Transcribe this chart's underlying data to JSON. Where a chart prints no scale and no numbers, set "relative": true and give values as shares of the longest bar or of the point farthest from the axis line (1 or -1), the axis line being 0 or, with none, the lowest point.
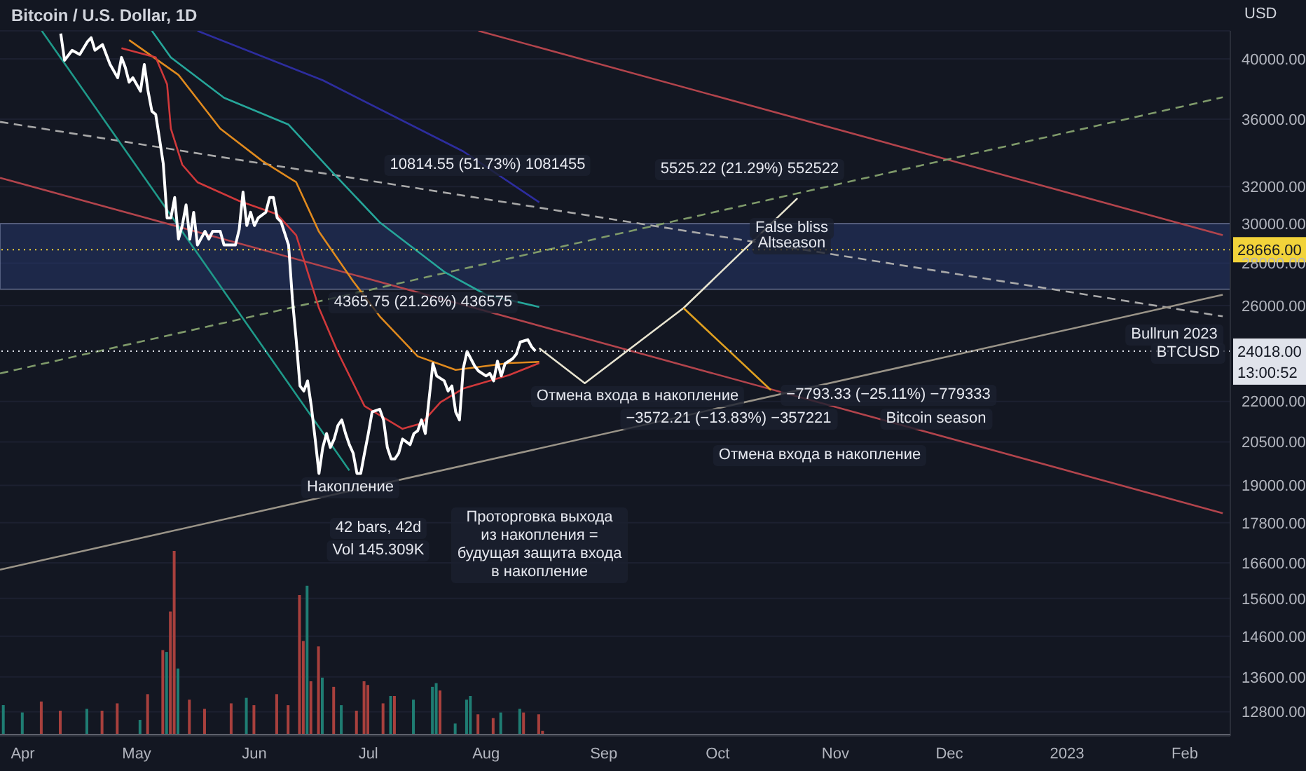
{
  "chart_data": [
    {
      "type": "line",
      "title": "Bitcoin / U.S. Dollar, 1D",
      "ylabel": "USD",
      "log": "y",
      "grid": "y",
      "xlim": [
        "2022-03-26",
        "2023-02-13"
      ],
      "xticks": [
        {
          "value": "2022-04-01",
          "label": "Apr"
        },
        {
          "value": "2022-05-01",
          "label": "May"
        },
        {
          "value": "2022-06-01",
          "label": "Jun"
        },
        {
          "value": "2022-07-01",
          "label": "Jul"
        },
        {
          "value": "2022-08-01",
          "label": "Aug"
        },
        {
          "value": "2022-09-01",
          "label": "Sep"
        },
        {
          "value": "2022-10-01",
          "label": "Oct"
        },
        {
          "value": "2022-11-01",
          "label": "Nov"
        },
        {
          "value": "2022-12-01",
          "label": "Dec"
        },
        {
          "value": "2023-01-01",
          "label": "2023"
        },
        {
          "value": "2023-02-01",
          "label": "Feb"
        }
      ],
      "ylim": [
        12270,
        42000
      ],
      "yticks": [
        {
          "value": 40000,
          "label": "40000.00"
        },
        {
          "value": 36000,
          "label": "36000.00"
        },
        {
          "value": 32000,
          "label": "32000.00"
        },
        {
          "value": 30000,
          "label": "30000.00"
        },
        {
          "value": 28000,
          "label": "28000.00"
        },
        {
          "value": 26000,
          "label": "26000.00"
        },
        {
          "value": 22000,
          "label": "22000.00"
        },
        {
          "value": 20500,
          "label": "20500.00"
        },
        {
          "value": 19000,
          "label": "19000.00"
        },
        {
          "value": 17800,
          "label": "17800.00"
        },
        {
          "value": 16600,
          "label": "16600.00"
        },
        {
          "value": 15600,
          "label": "15600.00"
        },
        {
          "value": 14600,
          "label": "14600.00"
        },
        {
          "value": 13600,
          "label": "13600.00"
        },
        {
          "value": 12800,
          "label": "12800.00"
        }
      ],
      "bands": [
        {
          "axis": "y",
          "from": 26750,
          "to": 30000,
          "color": "#2a3f7a"
        }
      ],
      "ref_lines": [
        {
          "axis": "y",
          "value": 28666,
          "label": "28666.00",
          "color": "#f2d33a",
          "line_style": "dotted"
        },
        {
          "axis": "y",
          "value": 24018,
          "label": "24018.00",
          "color": "#e0e3eb",
          "line_style": "dotted"
        }
      ],
      "series": [
        {
          "color": "#b2444c",
          "x": [
            "2022-07-30",
            "2023-02-11"
          ],
          "values": [
            42000,
            29400
          ]
        },
        {
          "color": "#b2444c",
          "x": [
            "2022-03-26",
            "2023-02-11"
          ],
          "values": [
            32500,
            18100
          ]
        },
        {
          "color": "#7f9a6a",
          "line_style": "dashed",
          "x": [
            "2022-03-26",
            "2023-02-11"
          ],
          "values": [
            23100,
            37400
          ]
        },
        {
          "color": "#a9a9a9",
          "line_style": "dashed",
          "x": [
            "2022-03-26",
            "2023-02-11"
          ],
          "values": [
            35830,
            25520
          ]
        },
        {
          "color": "#9a9488",
          "x": [
            "2022-03-26",
            "2023-02-11"
          ],
          "values": [
            16400,
            26500
          ]
        },
        {
          "color": "#1f9a8a",
          "x": [
            "2022-04-06",
            "2022-06-26"
          ],
          "values": [
            42000,
            19500
          ]
        },
        {
          "color": "#2d2d9e",
          "x": [
            "2022-05-17",
            "2022-06-19",
            "2022-07-26",
            "2022-08-15"
          ],
          "values": [
            42000,
            38530,
            34030,
            31140
          ]
        },
        {
          "color": "#26a69a",
          "x": [
            "2022-05-05",
            "2022-05-10",
            "2022-05-24",
            "2022-06-10",
            "2022-06-22",
            "2022-07-04",
            "2022-07-21",
            "2022-08-01",
            "2022-08-15"
          ],
          "values": [
            42000,
            40090,
            37370,
            35660,
            32710,
            30070,
            27580,
            26500,
            25940
          ]
        },
        {
          "color": "#e08a1e",
          "x": [
            "2022-04-29",
            "2022-05-12",
            "2022-05-23",
            "2022-06-03",
            "2022-06-12",
            "2022-06-18",
            "2022-06-27",
            "2022-07-04",
            "2022-07-14",
            "2022-07-24",
            "2022-08-07",
            "2022-08-15"
          ],
          "values": [
            41330,
            38890,
            35410,
            33480,
            32250,
            29580,
            27130,
            25520,
            23800,
            23240,
            23520,
            23570
          ]
        },
        {
          "color": "#d0393b",
          "x": [
            "2022-04-27",
            "2022-05-06",
            "2022-05-09",
            "2022-05-10",
            "2022-05-13",
            "2022-05-17",
            "2022-05-28",
            "2022-06-07",
            "2022-06-12",
            "2022-06-18",
            "2022-06-23",
            "2022-06-30",
            "2022-07-10",
            "2022-07-15",
            "2022-07-20",
            "2022-07-26",
            "2022-08-07",
            "2022-08-15"
          ],
          "values": [
            40750,
            40100,
            38260,
            35410,
            33250,
            32250,
            31210,
            30490,
            29400,
            25890,
            23960,
            21820,
            20970,
            21170,
            21970,
            22500,
            23030,
            23520
          ]
        },
        {
          "color": "#e8e4d0",
          "x": [
            "2022-08-15",
            "2022-08-27",
            "2022-09-22",
            "2022-10-22"
          ],
          "values": [
            24140,
            22710,
            25890,
            31360
          ]
        },
        {
          "color": "#e0a020",
          "x": [
            "2022-09-22",
            "2022-10-15"
          ],
          "values": [
            25890,
            22440
          ]
        },
        {
          "color": "#ffffff",
          "x": [
            "2022-04-11",
            "2022-04-12",
            "2022-04-14",
            "2022-04-16",
            "2022-04-18",
            "2022-04-19",
            "2022-04-20",
            "2022-04-22",
            "2022-04-24",
            "2022-04-26",
            "2022-04-27",
            "2022-04-28",
            "2022-04-29",
            "2022-04-30",
            "2022-05-02",
            "2022-05-03",
            "2022-05-04",
            "2022-05-05",
            "2022-05-06",
            "2022-05-07",
            "2022-05-08",
            "2022-05-09",
            "2022-05-10",
            "2022-05-11",
            "2022-05-12",
            "2022-05-13",
            "2022-05-14",
            "2022-05-15",
            "2022-05-16",
            "2022-05-17",
            "2022-05-19",
            "2022-05-20",
            "2022-05-21",
            "2022-05-23",
            "2022-05-24",
            "2022-05-27",
            "2022-05-28",
            "2022-05-29",
            "2022-05-30",
            "2022-05-31",
            "2022-06-01",
            "2022-06-02",
            "2022-06-04",
            "2022-06-05",
            "2022-06-06",
            "2022-06-07",
            "2022-06-08",
            "2022-06-10",
            "2022-06-11",
            "2022-06-12",
            "2022-06-13",
            "2022-06-14",
            "2022-06-15",
            "2022-06-16",
            "2022-06-17",
            "2022-06-18",
            "2022-06-19",
            "2022-06-20",
            "2022-06-21",
            "2022-06-22",
            "2022-06-23",
            "2022-06-24",
            "2022-06-25",
            "2022-06-26",
            "2022-06-27",
            "2022-06-28",
            "2022-06-29",
            "2022-06-30",
            "2022-07-01",
            "2022-07-02",
            "2022-07-04",
            "2022-07-05",
            "2022-07-06",
            "2022-07-07",
            "2022-07-08",
            "2022-07-09",
            "2022-07-10",
            "2022-07-12",
            "2022-07-13",
            "2022-07-14",
            "2022-07-15",
            "2022-07-16",
            "2022-07-17",
            "2022-07-18",
            "2022-07-19",
            "2022-07-21",
            "2022-07-22",
            "2022-07-23",
            "2022-07-24",
            "2022-07-25",
            "2022-07-26",
            "2022-07-27",
            "2022-07-29",
            "2022-07-30",
            "2022-08-01",
            "2022-08-02",
            "2022-08-03",
            "2022-08-04",
            "2022-08-05",
            "2022-08-06",
            "2022-08-08",
            "2022-08-09",
            "2022-08-10",
            "2022-08-12",
            "2022-08-13",
            "2022-08-14"
          ],
          "values": [
            41800,
            39900,
            40600,
            40300,
            41200,
            41500,
            40600,
            41000,
            39600,
            38700,
            40100,
            39400,
            38400,
            38700,
            37800,
            39600,
            37800,
            36500,
            36300,
            34800,
            33300,
            30300,
            30300,
            31400,
            29200,
            29900,
            31000,
            29200,
            30600,
            28900,
            29600,
            29200,
            29600,
            29600,
            28900,
            28900,
            29700,
            31700,
            29900,
            30600,
            29900,
            30300,
            30600,
            31400,
            31400,
            30300,
            30100,
            28900,
            26300,
            24500,
            22600,
            22400,
            22800,
            21800,
            20600,
            19400,
            20300,
            20800,
            20300,
            20600,
            21100,
            21300,
            20800,
            20400,
            20100,
            19400,
            19400,
            20100,
            20800,
            21600,
            21700,
            21300,
            20300,
            19900,
            19900,
            20100,
            20600,
            20400,
            20800,
            20900,
            21300,
            20800,
            22100,
            23500,
            23000,
            22800,
            22400,
            22600,
            21600,
            21300,
            23300,
            24000,
            23400,
            23200,
            23000,
            23100,
            22800,
            23600,
            23000,
            23500,
            23700,
            23900,
            24400,
            24500,
            24200,
            24018
          ]
        }
      ],
      "annotations": [
        "10814.55 (51.73%) 1081455",
        "4365.75 (21.26%) 436575",
        "5525.22 (21.29%) 552522",
        "False bliss",
        "Altseason",
        "Отмена входа в накопление",
        "−7793.33 (−25.11%) −779333",
        "−3572.21 (−13.83%) −357221",
        "Bitcoin season",
        "Отмена входа в накопление",
        "Bullrun 2023",
        "Накопление",
        "42 bars, 42d",
        "Vol 145.309K",
        "Проторговка выхода из накопления = будущая защита входа в накопление",
        "BTCUSD",
        "13:00:52"
      ]
    },
    {
      "type": "bar",
      "relative": true,
      "tick_labels": false,
      "xlim": [
        "2022-03-26",
        "2023-02-13"
      ],
      "x": [
        "2022-03-27",
        "2022-04-01",
        "2022-04-06",
        "2022-04-11",
        "2022-04-18",
        "2022-04-22",
        "2022-04-26",
        "2022-05-02",
        "2022-05-04",
        "2022-05-08",
        "2022-05-09",
        "2022-05-10",
        "2022-05-11",
        "2022-05-12",
        "2022-05-15",
        "2022-05-19",
        "2022-05-26",
        "2022-05-30",
        "2022-06-01",
        "2022-06-07",
        "2022-06-10",
        "2022-06-13",
        "2022-06-14",
        "2022-06-15",
        "2022-06-16",
        "2022-06-18",
        "2022-06-19",
        "2022-06-22",
        "2022-06-24",
        "2022-06-28",
        "2022-06-30",
        "2022-07-01",
        "2022-07-05",
        "2022-07-07",
        "2022-07-08",
        "2022-07-13",
        "2022-07-18",
        "2022-07-19",
        "2022-07-20",
        "2022-07-24",
        "2022-07-27",
        "2022-07-28",
        "2022-07-30",
        "2022-08-03",
        "2022-08-05",
        "2022-08-10",
        "2022-08-11",
        "2022-08-15",
        "2022-08-16"
      ],
      "values": [
        0.16,
        0.12,
        0.18,
        0.13,
        0.14,
        0.13,
        0.17,
        0.08,
        0.22,
        0.46,
        0.45,
        0.67,
        1,
        0.36,
        0.19,
        0.14,
        0.17,
        0.2,
        0.16,
        0.22,
        0.16,
        0.76,
        0.51,
        0.81,
        0.29,
        0.48,
        0.31,
        0.26,
        0.16,
        0.13,
        0.29,
        0.27,
        0.17,
        0.21,
        0.21,
        0.19,
        0.26,
        0.28,
        0.24,
        0.06,
        0.19,
        0.21,
        0.11,
        0.09,
        0.12,
        0.14,
        0.12,
        0.11,
        0.02
      ],
      "colors": [
        "#1f7d73",
        "#1f7d73",
        "#a8403d",
        "#a8403d",
        "#1f7d73",
        "#a8403d",
        "#a8403d",
        "#1f7d73",
        "#a8403d",
        "#a8403d",
        "#1f7d73",
        "#a8403d",
        "#a8403d",
        "#1f7d73",
        "#a8403d",
        "#a8403d",
        "#a8403d",
        "#1f7d73",
        "#a8403d",
        "#a8403d",
        "#a8403d",
        "#a8403d",
        "#a8403d",
        "#1f7d73",
        "#a8403d",
        "#a8403d",
        "#1f7d73",
        "#a8403d",
        "#1f7d73",
        "#a8403d",
        "#a8403d",
        "#a8403d",
        "#a8403d",
        "#1f7d73",
        "#a8403d",
        "#1f7d73",
        "#1f7d73",
        "#1f7d73",
        "#a8403d",
        "#1f7d73",
        "#1f7d73",
        "#1f7d73",
        "#a8403d",
        "#a8403d",
        "#1f7d73",
        "#1f7d73",
        "#a8403d",
        "#a8403d",
        "#a8403d"
      ]
    }
  ]
}
